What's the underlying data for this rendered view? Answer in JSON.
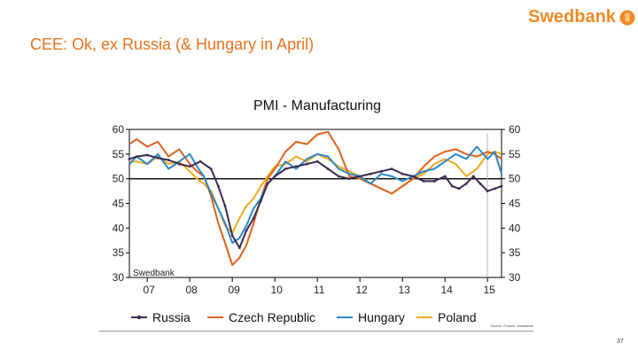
{
  "slide": {
    "title": "CEE: Ok, ex Russia (& Hungary in April)",
    "brand": "Swedbank",
    "page_number": "37"
  },
  "colors": {
    "title": "#e8731c",
    "brand": "#f08a24",
    "russia": "#3b2a52",
    "czech": "#e0601e",
    "hungary": "#2a88c7",
    "poland": "#f0a91f",
    "axis": "#000000"
  },
  "chart_data": {
    "type": "line",
    "title": "PMI - Manufacturing",
    "watermark": "Swedbank",
    "source": "Source: Ecowin, Swedbank",
    "xlabel": "",
    "ylabel": "",
    "ylim": [
      30,
      60
    ],
    "xlim": [
      2006.58,
      2015.33
    ],
    "yticks": [
      30,
      35,
      40,
      45,
      50,
      55,
      60
    ],
    "ytick_labels_left": [
      "30",
      "35",
      "40",
      "45",
      "50",
      "55",
      "60"
    ],
    "ytick_labels_right": [
      "30",
      "35",
      "40",
      "45",
      "50",
      "55",
      "60"
    ],
    "reference_line": 50,
    "xtick_labels": [
      "07",
      "08",
      "09",
      "10",
      "11",
      "12",
      "13",
      "14",
      "15"
    ],
    "xtick_values": [
      2007.0,
      2008.0,
      2009.0,
      2010.0,
      2011.0,
      2012.0,
      2013.0,
      2014.0,
      2015.0
    ],
    "legend_position": "bottom",
    "series": [
      {
        "name": "Russia",
        "key": "russia",
        "color": "#3b2a52",
        "marker": "dot",
        "x": [
          2006.58,
          2006.75,
          2007.0,
          2007.25,
          2007.5,
          2007.75,
          2008.0,
          2008.25,
          2008.5,
          2008.67,
          2008.83,
          2009.0,
          2009.17,
          2009.33,
          2009.5,
          2009.67,
          2009.83,
          2010.0,
          2010.25,
          2010.5,
          2010.75,
          2011.0,
          2011.25,
          2011.5,
          2011.75,
          2012.0,
          2012.25,
          2012.5,
          2012.75,
          2013.0,
          2013.25,
          2013.5,
          2013.75,
          2014.0,
          2014.17,
          2014.33,
          2014.5,
          2014.67,
          2014.83,
          2015.0,
          2015.17,
          2015.33
        ],
        "values": [
          54.0,
          54.5,
          54.8,
          54.2,
          53.8,
          53.0,
          52.5,
          53.5,
          52.0,
          48.5,
          44.5,
          38.5,
          36.0,
          39.5,
          42.0,
          45.5,
          49.0,
          50.5,
          52.0,
          52.5,
          53.0,
          53.5,
          52.0,
          50.5,
          50.0,
          50.5,
          51.0,
          51.5,
          52.0,
          51.0,
          50.5,
          49.5,
          49.5,
          50.5,
          48.5,
          48.0,
          49.0,
          50.5,
          49.0,
          47.5,
          48.0,
          48.5
        ]
      },
      {
        "name": "Czech Republic",
        "key": "czech",
        "color": "#e0601e",
        "marker": "",
        "x": [
          2006.58,
          2006.75,
          2007.0,
          2007.25,
          2007.5,
          2007.75,
          2008.0,
          2008.17,
          2008.33,
          2008.5,
          2008.67,
          2008.83,
          2009.0,
          2009.17,
          2009.33,
          2009.5,
          2009.67,
          2009.83,
          2010.0,
          2010.25,
          2010.5,
          2010.75,
          2011.0,
          2011.25,
          2011.5,
          2011.75,
          2012.0,
          2012.25,
          2012.5,
          2012.75,
          2013.0,
          2013.25,
          2013.5,
          2013.75,
          2014.0,
          2014.25,
          2014.5,
          2014.75,
          2015.0,
          2015.17,
          2015.33
        ],
        "values": [
          57.0,
          58.0,
          56.5,
          57.5,
          54.5,
          56.0,
          53.0,
          51.5,
          50.5,
          46.5,
          41.0,
          37.0,
          32.5,
          34.0,
          36.5,
          41.0,
          46.0,
          50.0,
          52.0,
          55.5,
          57.5,
          57.0,
          59.0,
          59.5,
          56.0,
          50.5,
          50.0,
          49.0,
          48.0,
          47.0,
          48.5,
          50.0,
          52.5,
          54.5,
          55.5,
          56.0,
          55.0,
          54.5,
          55.5,
          55.0,
          54.0
        ]
      },
      {
        "name": "Hungary",
        "key": "hungary",
        "color": "#2a88c7",
        "marker": "",
        "x": [
          2006.58,
          2006.75,
          2007.0,
          2007.25,
          2007.5,
          2007.75,
          2008.0,
          2008.17,
          2008.33,
          2008.5,
          2008.67,
          2008.83,
          2009.0,
          2009.17,
          2009.33,
          2009.5,
          2009.67,
          2009.83,
          2010.0,
          2010.25,
          2010.5,
          2010.75,
          2011.0,
          2011.25,
          2011.5,
          2011.75,
          2012.0,
          2012.25,
          2012.5,
          2012.75,
          2013.0,
          2013.25,
          2013.5,
          2013.75,
          2014.0,
          2014.25,
          2014.5,
          2014.75,
          2015.0,
          2015.17,
          2015.33
        ],
        "values": [
          53.0,
          54.5,
          53.0,
          55.0,
          52.0,
          53.5,
          55.0,
          52.5,
          50.5,
          47.0,
          44.0,
          41.0,
          37.0,
          38.0,
          40.5,
          44.0,
          46.0,
          49.0,
          50.5,
          53.5,
          52.0,
          54.0,
          55.0,
          54.5,
          52.0,
          51.0,
          50.5,
          49.0,
          51.0,
          50.5,
          49.5,
          50.5,
          51.5,
          52.0,
          53.5,
          55.0,
          54.0,
          56.5,
          54.0,
          55.5,
          51.0
        ]
      },
      {
        "name": "Poland",
        "key": "poland",
        "color": "#f0a91f",
        "marker": "",
        "x": [
          2006.58,
          2006.75,
          2007.0,
          2007.25,
          2007.5,
          2007.75,
          2008.0,
          2008.17,
          2008.33,
          2008.5,
          2008.67,
          2008.83,
          2009.0,
          2009.17,
          2009.33,
          2009.5,
          2009.67,
          2009.83,
          2010.0,
          2010.25,
          2010.5,
          2010.75,
          2011.0,
          2011.25,
          2011.5,
          2011.75,
          2012.0,
          2012.25,
          2012.5,
          2012.75,
          2013.0,
          2013.25,
          2013.5,
          2013.75,
          2014.0,
          2014.25,
          2014.5,
          2014.75,
          2015.0,
          2015.17,
          2015.33
        ],
        "values": [
          53.5,
          53.5,
          53.0,
          54.5,
          53.0,
          53.5,
          51.5,
          50.0,
          49.0,
          47.5,
          44.0,
          40.5,
          39.0,
          42.0,
          44.5,
          46.0,
          48.5,
          50.5,
          52.5,
          53.0,
          54.5,
          53.5,
          55.0,
          54.0,
          52.5,
          51.5,
          50.5,
          49.0,
          48.0,
          47.0,
          48.5,
          50.0,
          51.0,
          53.0,
          54.0,
          53.0,
          50.5,
          52.0,
          55.0,
          55.5,
          55.0
        ]
      }
    ]
  }
}
